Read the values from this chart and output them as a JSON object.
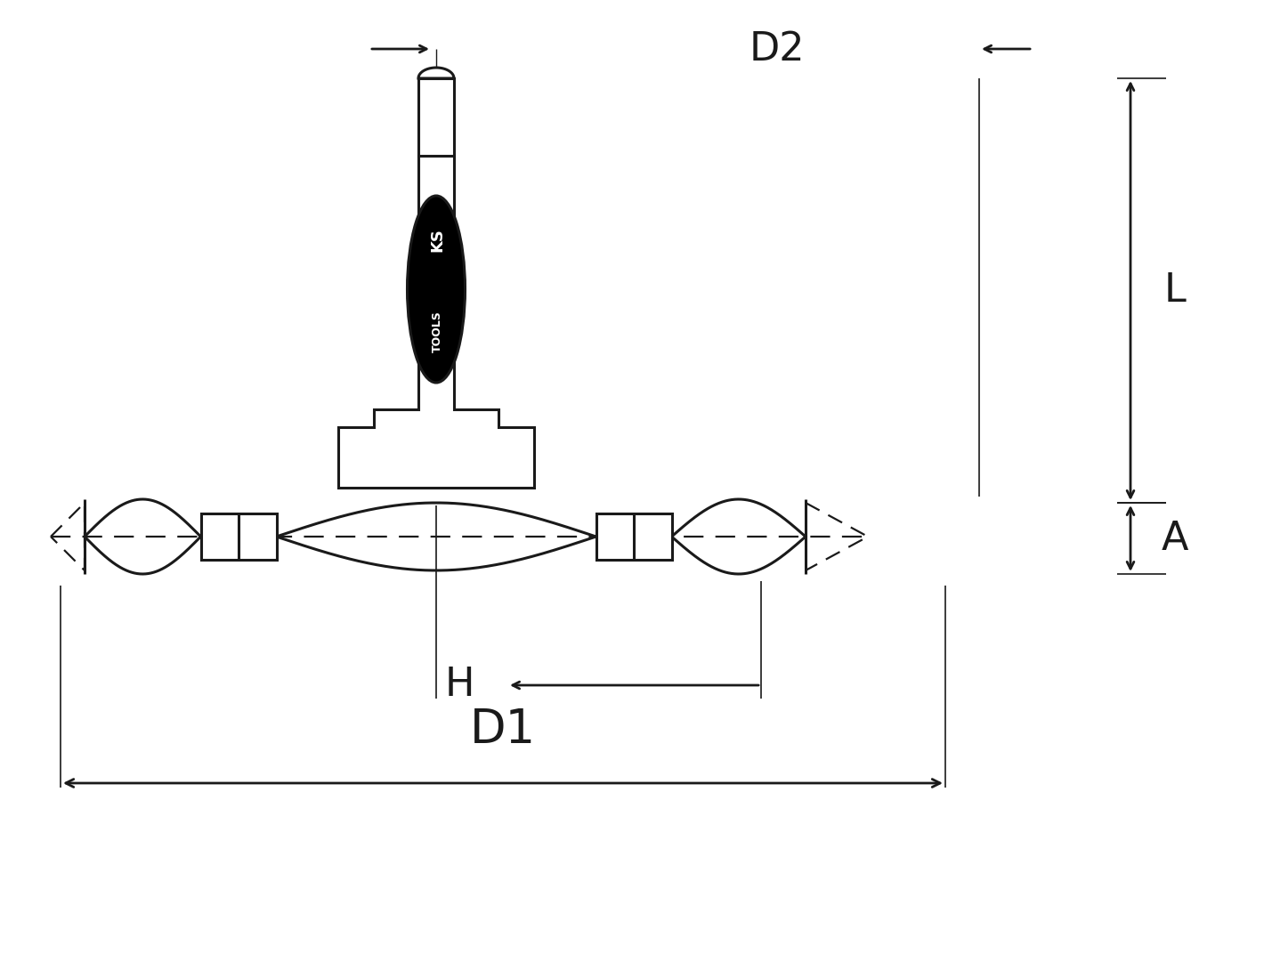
{
  "bg_color": "#ffffff",
  "line_color": "#1a1a1a",
  "fig_width": 14.2,
  "fig_height": 10.99,
  "dpi": 100,
  "labels": {
    "D1": "D1",
    "D2": "D2",
    "L": "L",
    "A": "A",
    "H": "H"
  },
  "label_fontsize": 32,
  "lw": 2.0,
  "lw_thick": 2.2
}
